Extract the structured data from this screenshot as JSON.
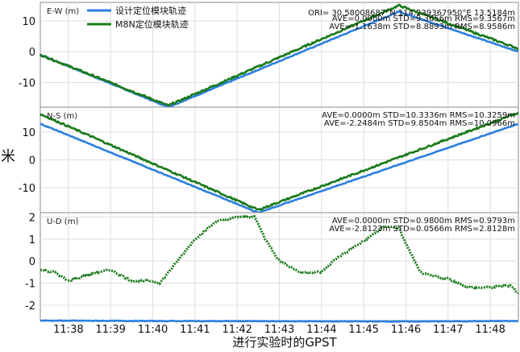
{
  "chart_data": {
    "type": "line",
    "ylabel": "米",
    "xlabel": "进行实验时的GPST",
    "x_ticks": [
      "11:38",
      "11:39",
      "11:40",
      "11:41",
      "11:42",
      "11:43",
      "11:44",
      "11:45",
      "11:46",
      "11:47",
      "11:48"
    ],
    "xlim": [
      "11:37:20",
      "11:48:40"
    ],
    "colors": {
      "design": "#2b7fe0",
      "m8n": "#1a7a1a"
    },
    "legend": {
      "placement": "top-left",
      "entries": [
        "设计定位模块轨迹",
        "M8N定位模块轨迹"
      ]
    },
    "header_text": "ORI= 30.58008687°N 114.239367950°E 13.5184m",
    "panels": [
      {
        "title": "E-W (m)",
        "ylim": [
          -18,
          16
        ],
        "yticks": [
          10,
          0,
          -10
        ],
        "stats": [
          "AVE=0.0000m STD=9.3656m RMS=9.3567m",
          "AVE=-1.1638m STD=8.8893m RMS=8.9586m"
        ],
        "series": [
          {
            "name": "设计定位模块轨迹",
            "x": [
              "11:37:20",
              "11:40:22",
              "11:45:50",
              "11:48:40"
            ],
            "y": [
              -1,
              -18,
              13,
              0
            ]
          },
          {
            "name": "M8N定位模块轨迹",
            "x": [
              "11:37:20",
              "11:40:22",
              "11:45:50",
              "11:48:40"
            ],
            "y": [
              -1,
              -17.5,
              15,
              1
            ]
          }
        ]
      },
      {
        "title": "N-S (m)",
        "ylim": [
          -19,
          19
        ],
        "yticks": [
          10,
          0,
          -10
        ],
        "stats": [
          "AVE=0.0000m STD=10.3336m RMS=10.3259m",
          "AVE=-2.2484m STD=9.8504m RMS=10.0966m"
        ],
        "series": [
          {
            "name": "设计定位模块轨迹",
            "x": [
              "11:37:20",
              "11:42:30",
              "11:48:40"
            ],
            "y": [
              13,
              -19,
              13
            ]
          },
          {
            "name": "M8N定位模块轨迹",
            "x": [
              "11:37:20",
              "11:42:30",
              "11:48:40"
            ],
            "y": [
              16.5,
              -18,
              17
            ]
          }
        ]
      },
      {
        "title": "U-D (m)",
        "ylim": [
          -2.7,
          2.2
        ],
        "yticks": [
          2,
          1,
          0,
          -1,
          -2
        ],
        "stats": [
          "AVE=0.0000m STD=0.9800m RMS=0.9793m",
          "AVE=-2.8123m STD=0.0566m RMS=2.8128m"
        ],
        "series": [
          {
            "name": "设计定位模块轨迹",
            "x": [
              "11:37:20",
              "11:40:00",
              "11:43:00",
              "11:46:00",
              "11:48:40"
            ],
            "y": [
              -2.7,
              -2.72,
              -2.73,
              -2.74,
              -2.72
            ]
          },
          {
            "name": "M8N定位模块轨迹",
            "x": [
              "11:37:20",
              "11:37:40",
              "11:38:00",
              "11:38:30",
              "11:39:00",
              "11:39:30",
              "11:40:00",
              "11:40:10",
              "11:40:30",
              "11:41:00",
              "11:41:30",
              "11:42:00",
              "11:42:25",
              "11:42:40",
              "11:42:50",
              "11:43:00",
              "11:43:30",
              "11:44:00",
              "11:44:20",
              "11:44:40",
              "11:45:00",
              "11:45:30",
              "11:45:50",
              "11:46:00",
              "11:46:20",
              "11:46:40",
              "11:47:00",
              "11:47:30",
              "11:48:00",
              "11:48:30",
              "11:48:40"
            ],
            "y": [
              -0.4,
              -0.5,
              -0.9,
              -0.6,
              -0.4,
              -0.9,
              -0.9,
              -1.0,
              -0.2,
              1.0,
              1.8,
              2.0,
              2.0,
              1.0,
              0.5,
              0.0,
              -0.5,
              -0.5,
              0.1,
              0.5,
              0.9,
              1.6,
              1.5,
              0.8,
              -0.5,
              -0.7,
              -0.8,
              -1.2,
              -1.2,
              -1.1,
              -1.5
            ]
          }
        ]
      }
    ]
  }
}
